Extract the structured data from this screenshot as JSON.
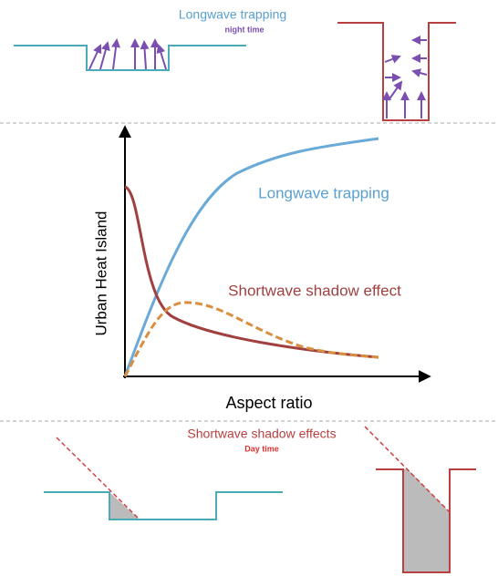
{
  "top": {
    "title": "Longwave trapping",
    "subtitle": "night time"
  },
  "chart": {
    "y_label": "Urban Heat Island",
    "x_label": "Aspect ratio",
    "curve_labels": [
      "Longwave trapping",
      "Shortwave shadow effect"
    ]
  },
  "bottom": {
    "title": "Shortwave shadow effects",
    "subtitle": "Day time"
  }
}
